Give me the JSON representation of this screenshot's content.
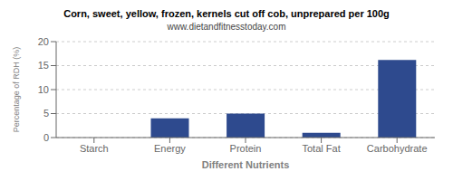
{
  "chart_data": {
    "type": "bar",
    "title": "Corn, sweet, yellow, frozen, kernels cut off cob, unprepared per 100g",
    "subtitle": "www.dietandfitnesstoday.com",
    "xlabel": "Different Nutrients",
    "ylabel": "Percentage of RDH (%)",
    "categories": [
      "Starch",
      "Energy",
      "Protein",
      "Total Fat",
      "Carbohydrate"
    ],
    "values": [
      0,
      4.0,
      5.0,
      1.0,
      16.2
    ],
    "color": "#2E4A8E",
    "ylim": [
      0,
      20
    ],
    "yticks": [
      0,
      5,
      10,
      15,
      20
    ],
    "grid": true
  }
}
